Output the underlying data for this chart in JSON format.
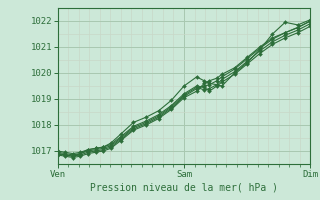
{
  "bg_color": "#cce8d8",
  "plot_bg_color": "#cce8d8",
  "line_color": "#2d6e3a",
  "marker_color": "#2d6e3a",
  "ylim": [
    1016.5,
    1022.5
  ],
  "yticks": [
    1017,
    1018,
    1019,
    1020,
    1021,
    1022
  ],
  "xtick_labels": [
    "Ven",
    "Sam",
    "Dim"
  ],
  "xtick_positions": [
    0.0,
    0.5,
    1.0
  ],
  "xlabel": "Pression niveau de la mer( hPa )",
  "major_grid_color": "#a8c8b0",
  "minor_grid_color": "#c8d8c8",
  "series": [
    [
      0.0,
      1016.9,
      0.03,
      1016.85,
      0.06,
      1016.8,
      0.09,
      1016.85,
      0.12,
      1016.95,
      0.15,
      1017.0,
      0.18,
      1017.05,
      0.21,
      1017.15,
      0.25,
      1017.45,
      0.3,
      1017.85,
      0.35,
      1018.05,
      0.4,
      1018.3,
      0.45,
      1018.65,
      0.5,
      1019.1,
      0.55,
      1019.4,
      0.58,
      1019.5,
      0.6,
      1019.55,
      0.63,
      1019.7,
      0.65,
      1019.85,
      0.7,
      1020.15,
      0.75,
      1020.55,
      0.8,
      1020.95,
      0.85,
      1021.3,
      0.9,
      1021.55,
      0.95,
      1021.75,
      1.0,
      1022.0
    ],
    [
      0.0,
      1016.95,
      0.03,
      1016.9,
      0.06,
      1016.85,
      0.09,
      1016.9,
      0.12,
      1017.0,
      0.15,
      1017.05,
      0.18,
      1017.1,
      0.21,
      1017.2,
      0.25,
      1017.5,
      0.3,
      1017.9,
      0.35,
      1018.1,
      0.4,
      1018.35,
      0.45,
      1018.7,
      0.5,
      1019.15,
      0.55,
      1019.45,
      0.58,
      1019.35,
      0.6,
      1019.4,
      0.63,
      1019.55,
      0.65,
      1019.75,
      0.7,
      1020.05,
      0.75,
      1020.45,
      0.8,
      1020.85,
      0.85,
      1021.2,
      0.9,
      1021.45,
      0.95,
      1021.65,
      1.0,
      1021.9
    ],
    [
      0.0,
      1017.0,
      0.03,
      1016.95,
      0.06,
      1016.9,
      0.09,
      1016.95,
      0.12,
      1017.05,
      0.15,
      1017.1,
      0.18,
      1017.15,
      0.21,
      1017.25,
      0.25,
      1017.55,
      0.3,
      1017.95,
      0.35,
      1018.15,
      0.4,
      1018.4,
      0.45,
      1018.75,
      0.5,
      1019.2,
      0.55,
      1019.5,
      0.58,
      1019.45,
      0.6,
      1019.3,
      0.63,
      1019.5,
      0.65,
      1019.65,
      0.7,
      1019.95,
      0.75,
      1020.35,
      0.8,
      1020.75,
      0.85,
      1021.1,
      0.9,
      1021.35,
      0.95,
      1021.55,
      1.0,
      1021.8
    ],
    [
      0.0,
      1016.85,
      0.03,
      1016.8,
      0.06,
      1016.75,
      0.09,
      1016.8,
      0.12,
      1016.9,
      0.15,
      1016.95,
      0.18,
      1017.0,
      0.21,
      1017.1,
      0.25,
      1017.4,
      0.3,
      1017.8,
      0.35,
      1018.0,
      0.4,
      1018.25,
      0.45,
      1018.6,
      0.5,
      1019.05,
      0.55,
      1019.3,
      0.58,
      1019.6,
      0.6,
      1019.7,
      0.63,
      1019.8,
      0.65,
      1019.95,
      0.7,
      1020.2,
      0.75,
      1020.6,
      0.8,
      1021.0,
      0.85,
      1021.35,
      0.9,
      1021.55,
      0.95,
      1021.75,
      1.0,
      1022.0
    ],
    [
      0.0,
      1016.9,
      0.03,
      1016.85,
      0.06,
      1016.8,
      0.09,
      1016.9,
      0.12,
      1017.05,
      0.15,
      1017.1,
      0.18,
      1017.15,
      0.21,
      1017.3,
      0.25,
      1017.65,
      0.3,
      1018.1,
      0.35,
      1018.3,
      0.4,
      1018.55,
      0.45,
      1018.95,
      0.5,
      1019.5,
      0.55,
      1019.85,
      0.58,
      1019.7,
      0.6,
      1019.6,
      0.63,
      1019.55,
      0.65,
      1019.5,
      0.7,
      1020.0,
      0.75,
      1020.4,
      0.8,
      1020.9,
      0.85,
      1021.5,
      0.9,
      1021.95,
      0.95,
      1021.85,
      1.0,
      1022.05
    ]
  ]
}
